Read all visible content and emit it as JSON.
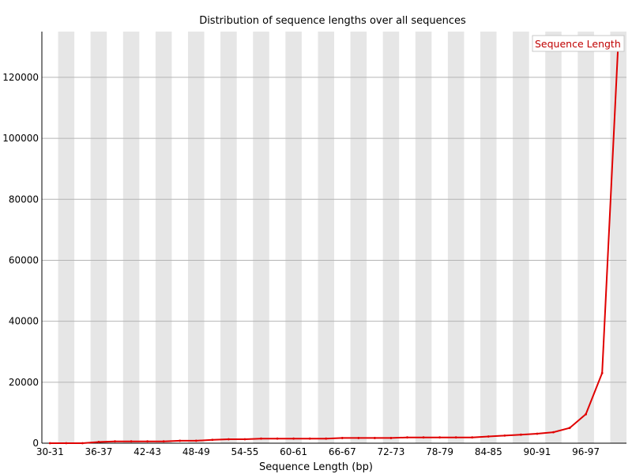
{
  "chart_data": {
    "type": "line",
    "title": "Distribution of sequence lengths over all sequences",
    "xlabel": "Sequence Length (bp)",
    "ylabel": "",
    "ylim": [
      0,
      135000
    ],
    "yticks": [
      0,
      20000,
      40000,
      60000,
      80000,
      100000,
      120000
    ],
    "ytick_labels": [
      "0",
      "20000",
      "40000",
      "60000",
      "80000",
      "100000",
      "120000"
    ],
    "categories": [
      "30-31",
      "32-33",
      "34-35",
      "36-37",
      "38-39",
      "40-41",
      "42-43",
      "44-45",
      "46-47",
      "48-49",
      "50-51",
      "52-53",
      "54-55",
      "56-57",
      "58-59",
      "60-61",
      "62-63",
      "64-65",
      "66-67",
      "68-69",
      "70-71",
      "72-73",
      "74-75",
      "76-77",
      "78-79",
      "80-81",
      "82-83",
      "84-85",
      "86-87",
      "88-89",
      "90-91",
      "92-93",
      "94-95",
      "96-97",
      "98-99",
      "100-101"
    ],
    "xtick_labels_shown": [
      "30-31",
      "36-37",
      "42-43",
      "48-49",
      "54-55",
      "60-61",
      "66-67",
      "72-73",
      "78-79",
      "84-85",
      "90-91",
      "96-97"
    ],
    "series": [
      {
        "name": "Sequence Length",
        "color": "#e00000",
        "values": [
          0,
          0,
          0,
          400,
          600,
          600,
          600,
          600,
          800,
          800,
          1100,
          1300,
          1300,
          1500,
          1500,
          1500,
          1500,
          1500,
          1700,
          1700,
          1700,
          1700,
          1900,
          1900,
          1900,
          1900,
          1900,
          2200,
          2500,
          2800,
          3100,
          3600,
          5000,
          9500,
          23000,
          132000
        ]
      }
    ],
    "legend": {
      "position": "top-right",
      "entries": [
        "Sequence Length"
      ]
    },
    "grid": true,
    "stripe_color": "#e6e6e6",
    "grid_color": "#b4b4b4"
  }
}
